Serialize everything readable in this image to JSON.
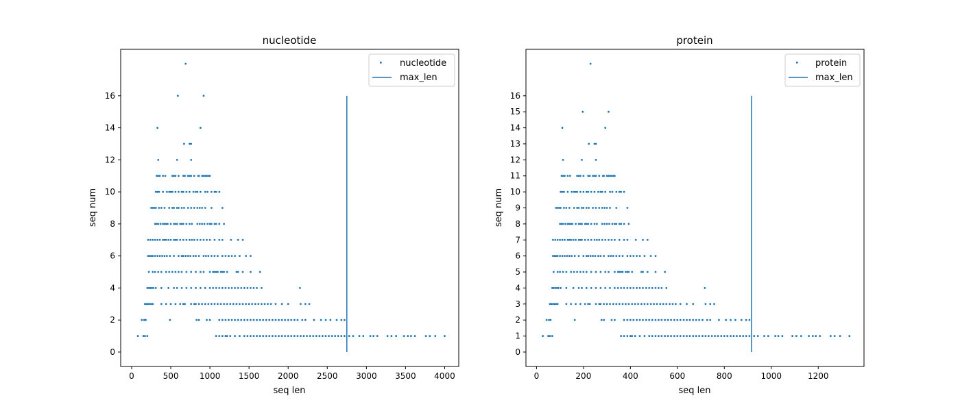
{
  "colors": {
    "series": "#1f77b4",
    "axis": "#000000",
    "legend_border": "#cccccc",
    "background": "#ffffff"
  },
  "chart_data": [
    {
      "type": "scatter",
      "title": "nucleotide",
      "xlabel": "seq len",
      "ylabel": "seq num",
      "xlim": [
        -140,
        4180
      ],
      "ylim": [
        -0.9,
        18.9
      ],
      "xticks": [
        0,
        500,
        1000,
        1500,
        2000,
        2500,
        3000,
        3500,
        4000
      ],
      "yticks": [
        0,
        2,
        4,
        6,
        8,
        10,
        12,
        14,
        16
      ],
      "grid": false,
      "legend_position": "top-right",
      "legend": [
        "nucleotide",
        "max_len"
      ],
      "vline": {
        "name": "max_len",
        "x": 2750,
        "y_range": [
          0,
          16
        ]
      },
      "points_by_y": {
        "18": [
          690
        ],
        "16": [
          590,
          920
        ],
        "14": [
          330,
          880
        ],
        "13": [
          670,
          740,
          760
        ],
        "12": [
          340,
          580,
          760
        ],
        "11": [
          320,
          340,
          360,
          400,
          430,
          520,
          540,
          560,
          600,
          660,
          680,
          720,
          740,
          760,
          800,
          850,
          860,
          900,
          920,
          940,
          960,
          980,
          1000
        ],
        "10": [
          310,
          330,
          350,
          400,
          450,
          480,
          500,
          520,
          560,
          600,
          640,
          660,
          700,
          740,
          790,
          820,
          840,
          880,
          940,
          970,
          1020,
          1060,
          1080,
          1120
        ],
        "9": [
          250,
          270,
          290,
          310,
          350,
          380,
          420,
          480,
          520,
          540,
          580,
          600,
          640,
          670,
          720,
          760,
          800,
          840,
          870,
          900,
          940,
          1020,
          1160
        ],
        "8": [
          300,
          320,
          340,
          370,
          400,
          420,
          440,
          460,
          500,
          540,
          560,
          580,
          620,
          640,
          660,
          700,
          740,
          770,
          840,
          870,
          900,
          930,
          970,
          1000,
          1020,
          1060,
          1080,
          1120,
          1180
        ],
        "7": [
          210,
          240,
          270,
          300,
          330,
          360,
          400,
          420,
          440,
          470,
          500,
          540,
          560,
          580,
          620,
          660,
          700,
          740,
          770,
          800,
          840,
          880,
          920,
          960,
          1000,
          1060,
          1120,
          1160,
          1270,
          1360,
          1420
        ],
        "6": [
          210,
          230,
          250,
          270,
          300,
          330,
          360,
          390,
          420,
          450,
          490,
          540,
          600,
          640,
          660,
          690,
          720,
          750,
          790,
          820,
          860,
          920,
          950,
          980,
          1020,
          1060,
          1100,
          1160,
          1200,
          1240,
          1280,
          1320,
          1380,
          1460,
          1520
        ],
        "5": [
          220,
          270,
          300,
          340,
          380,
          440,
          480,
          520,
          560,
          600,
          640,
          700,
          760,
          820,
          880,
          920,
          1000,
          1040,
          1060,
          1080,
          1100,
          1140,
          1160,
          1180,
          1220,
          1340,
          1360,
          1420,
          1520,
          1640
        ],
        "4": [
          200,
          220,
          240,
          260,
          280,
          310,
          380,
          470,
          540,
          580,
          640,
          700,
          760,
          820,
          880,
          940,
          1000,
          1040,
          1080,
          1120,
          1160,
          1200,
          1240,
          1280,
          1320,
          1360,
          1400,
          1440,
          1480,
          1520,
          1560,
          1600,
          1660,
          2150
        ],
        "3": [
          170,
          190,
          210,
          230,
          250,
          270,
          380,
          440,
          500,
          560,
          620,
          660,
          680,
          760,
          800,
          820,
          860,
          900,
          940,
          980,
          1020,
          1060,
          1100,
          1140,
          1180,
          1220,
          1260,
          1300,
          1340,
          1380,
          1420,
          1460,
          1500,
          1540,
          1580,
          1620,
          1660,
          1700,
          1740,
          1780,
          1840,
          1920,
          2000,
          2160,
          2220,
          2270
        ],
        "2": [
          130,
          160,
          180,
          490,
          830,
          860,
          960,
          1000,
          1120,
          1160,
          1200,
          1240,
          1280,
          1320,
          1360,
          1400,
          1440,
          1480,
          1520,
          1560,
          1600,
          1640,
          1680,
          1720,
          1760,
          1800,
          1840,
          1880,
          1920,
          1960,
          2000,
          2040,
          2080,
          2120,
          2180,
          2220,
          2330,
          2420,
          2480,
          2540,
          2620,
          2680,
          2720
        ],
        "1": [
          80,
          150,
          170,
          200,
          1080,
          1120,
          1160,
          1200,
          1220,
          1260,
          1320,
          1380,
          1440,
          1480,
          1520,
          1560,
          1600,
          1640,
          1680,
          1720,
          1760,
          1800,
          1840,
          1880,
          1920,
          1960,
          2000,
          2040,
          2080,
          2120,
          2160,
          2200,
          2240,
          2280,
          2320,
          2360,
          2400,
          2440,
          2480,
          2520,
          2560,
          2600,
          2640,
          2680,
          2720,
          2780,
          2830,
          2910,
          2960,
          3050,
          3090,
          3140,
          3270,
          3320,
          3380,
          3480,
          3530,
          3570,
          3620,
          3760,
          3810,
          3880,
          4000
        ]
      }
    },
    {
      "type": "scatter",
      "title": "protein",
      "xlabel": "seq len",
      "ylabel": "seq num",
      "xlim": [
        -45,
        1395
      ],
      "ylim": [
        -0.9,
        18.9
      ],
      "xticks": [
        0,
        200,
        400,
        600,
        800,
        1000,
        1200
      ],
      "yticks": [
        0,
        1,
        2,
        3,
        4,
        5,
        6,
        7,
        8,
        9,
        10,
        11,
        12,
        13,
        14,
        15,
        16
      ],
      "grid": false,
      "legend_position": "top-right",
      "legend": [
        "protein",
        "max_len"
      ],
      "vline": {
        "name": "max_len",
        "x": 916,
        "y_range": [
          0,
          16
        ]
      },
      "points_by_y": {
        "18": [
          230
        ],
        "15": [
          197,
          307
        ],
        "14": [
          110,
          293
        ],
        "13": [
          223,
          247,
          253
        ],
        "12": [
          113,
          193,
          253
        ],
        "11": [
          107,
          113,
          120,
          133,
          143,
          173,
          180,
          187,
          200,
          220,
          227,
          240,
          247,
          253,
          267,
          283,
          287,
          300,
          307,
          313,
          320,
          327,
          333
        ],
        "10": [
          103,
          110,
          117,
          133,
          150,
          160,
          167,
          173,
          187,
          200,
          213,
          220,
          233,
          247,
          263,
          273,
          280,
          293,
          313,
          323,
          340,
          353,
          360,
          373
        ],
        "9": [
          83,
          90,
          97,
          103,
          117,
          127,
          140,
          160,
          173,
          180,
          193,
          200,
          213,
          223,
          240,
          253,
          267,
          280,
          290,
          300,
          313,
          340,
          387
        ],
        "8": [
          100,
          107,
          113,
          123,
          133,
          140,
          147,
          153,
          167,
          180,
          187,
          193,
          207,
          213,
          220,
          233,
          247,
          257,
          280,
          290,
          300,
          310,
          323,
          333,
          340,
          353,
          360,
          373,
          393
        ],
        "7": [
          70,
          80,
          90,
          100,
          110,
          120,
          133,
          140,
          147,
          157,
          167,
          180,
          187,
          193,
          207,
          220,
          233,
          247,
          257,
          267,
          280,
          293,
          307,
          320,
          333,
          353,
          373,
          387,
          423,
          453,
          473
        ],
        "6": [
          70,
          77,
          83,
          90,
          100,
          110,
          120,
          130,
          140,
          150,
          163,
          180,
          200,
          213,
          220,
          230,
          240,
          250,
          263,
          273,
          287,
          307,
          317,
          327,
          340,
          353,
          367,
          387,
          400,
          413,
          427,
          440,
          460,
          487,
          507
        ],
        "5": [
          73,
          90,
          100,
          113,
          127,
          147,
          160,
          173,
          187,
          200,
          213,
          233,
          253,
          273,
          293,
          307,
          333,
          347,
          353,
          360,
          367,
          380,
          387,
          393,
          407,
          447,
          453,
          473,
          507,
          547
        ],
        "4": [
          67,
          73,
          80,
          87,
          93,
          103,
          127,
          157,
          180,
          193,
          213,
          233,
          253,
          273,
          293,
          313,
          333,
          347,
          360,
          373,
          387,
          400,
          413,
          427,
          440,
          453,
          467,
          480,
          493,
          507,
          520,
          533,
          553,
          717
        ],
        "3": [
          57,
          63,
          70,
          77,
          83,
          90,
          127,
          147,
          167,
          187,
          207,
          220,
          227,
          253,
          267,
          273,
          287,
          300,
          313,
          327,
          340,
          353,
          367,
          380,
          393,
          407,
          420,
          433,
          447,
          460,
          473,
          487,
          500,
          513,
          527,
          540,
          553,
          567,
          580,
          593,
          613,
          640,
          667,
          720,
          740,
          757
        ],
        "2": [
          43,
          53,
          60,
          163,
          277,
          287,
          320,
          333,
          373,
          387,
          400,
          413,
          427,
          440,
          453,
          467,
          480,
          493,
          507,
          520,
          533,
          547,
          560,
          573,
          587,
          600,
          613,
          627,
          640,
          653,
          667,
          680,
          693,
          707,
          727,
          740,
          777,
          807,
          827,
          847,
          873,
          893,
          907
        ],
        "1": [
          27,
          50,
          57,
          67,
          360,
          373,
          387,
          400,
          407,
          420,
          440,
          460,
          480,
          493,
          507,
          520,
          533,
          547,
          560,
          573,
          587,
          600,
          613,
          627,
          640,
          653,
          667,
          680,
          693,
          707,
          720,
          733,
          747,
          760,
          773,
          787,
          800,
          813,
          827,
          840,
          853,
          867,
          880,
          893,
          907,
          927,
          943,
          970,
          987,
          1017,
          1030,
          1047,
          1090,
          1107,
          1127,
          1160,
          1177,
          1190,
          1207,
          1253,
          1270,
          1293,
          1333
        ]
      }
    }
  ]
}
